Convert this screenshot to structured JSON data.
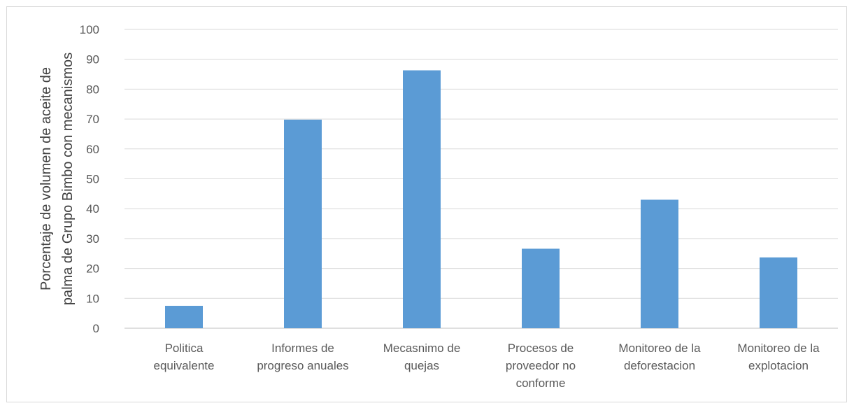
{
  "chart_data": {
    "type": "bar",
    "categories": [
      [
        "Politica",
        "equivalente"
      ],
      [
        "Informes de",
        "progreso anuales"
      ],
      [
        "Mecasnimo de",
        "quejas"
      ],
      [
        "Procesos de",
        "proveedor no",
        "conforme"
      ],
      [
        "Monitoreo de la",
        "deforestacion"
      ],
      [
        "Monitoreo de la",
        "explotacion"
      ]
    ],
    "values": [
      7.5,
      69.8,
      86.3,
      26.6,
      43,
      23.7
    ],
    "title": "",
    "xlabel": "",
    "ylabel": [
      "Porcentaje de volumen de aceite de",
      "palma de Grupo Bimbo con mecanismos"
    ],
    "ylim": [
      0,
      100
    ],
    "yticks": [
      0,
      10,
      20,
      30,
      40,
      50,
      60,
      70,
      80,
      90,
      100
    ],
    "grid": true,
    "legend": "none",
    "bar_color": "#5b9bd5",
    "grid_color": "#d9d9d9"
  }
}
